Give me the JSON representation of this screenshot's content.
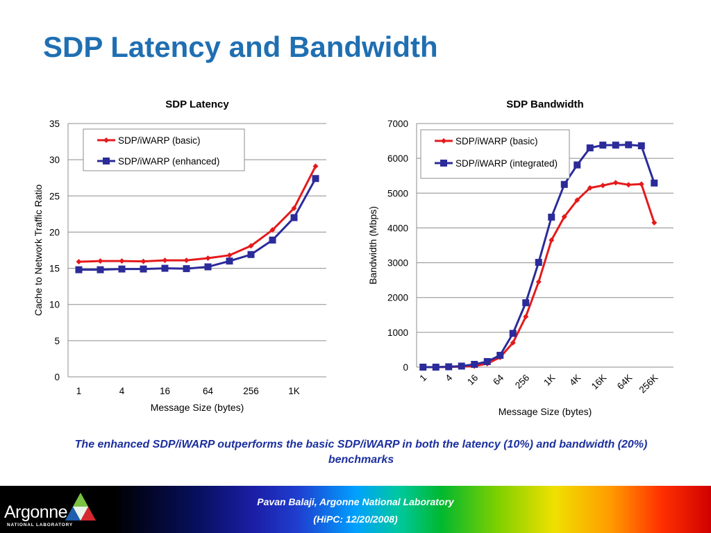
{
  "slide": {
    "title": "SDP Latency and Bandwidth",
    "caption": "The enhanced SDP/iWARP outperforms the basic SDP/iWARP in both the latency (10%) and bandwidth (20%) benchmarks"
  },
  "footer": {
    "line1": "Pavan Balaji, Argonne National Laboratory",
    "line2": "(HiPC: 12/20/2008)",
    "logo_text": "Argonne",
    "logo_subtext": "NATIONAL LABORATORY"
  },
  "chart_data": [
    {
      "id": "latency",
      "type": "line",
      "title": "SDP Latency",
      "xlabel": "Message Size (bytes)",
      "ylabel": "Cache to Network Traffic Ratio",
      "ylim": [
        0,
        35
      ],
      "yticks": [
        0,
        5,
        10,
        15,
        20,
        25,
        30,
        35
      ],
      "categories": [
        "1",
        "2",
        "4",
        "8",
        "16",
        "32",
        "64",
        "128",
        "256",
        "512",
        "1K",
        "2K"
      ],
      "tick_labels": [
        "1",
        "",
        "4",
        "",
        "16",
        "",
        "64",
        "",
        "256",
        "",
        "1K",
        ""
      ],
      "grid": true,
      "legend_position": "top-left",
      "series": [
        {
          "name": "SDP/iWARP (basic)",
          "color": "#e41a1c",
          "marker": "diamond",
          "values": [
            15.9,
            16.0,
            16.0,
            15.95,
            16.1,
            16.1,
            16.4,
            16.8,
            18.1,
            20.3,
            23.3,
            29.1
          ]
        },
        {
          "name": "SDP/iWARP (enhanced)",
          "color": "#2b2b9a",
          "marker": "square",
          "values": [
            14.8,
            14.8,
            14.9,
            14.9,
            15.0,
            14.95,
            15.2,
            16.0,
            16.9,
            18.9,
            22.0,
            27.4
          ]
        }
      ]
    },
    {
      "id": "bandwidth",
      "type": "line",
      "title": "SDP Bandwidth",
      "xlabel": "Message Size (bytes)",
      "ylabel": "Bandwidth (Mbps)",
      "ylim": [
        0,
        7000
      ],
      "yticks": [
        0,
        1000,
        2000,
        3000,
        4000,
        5000,
        6000,
        7000
      ],
      "categories": [
        "1",
        "2",
        "4",
        "8",
        "16",
        "32",
        "64",
        "128",
        "256",
        "512",
        "1K",
        "2K",
        "4K",
        "8K",
        "16K",
        "32K",
        "64K",
        "128K",
        "256K",
        "512K"
      ],
      "tick_labels": [
        "1",
        "",
        "4",
        "",
        "16",
        "",
        "64",
        "",
        "256",
        "",
        "1K",
        "",
        "4K",
        "",
        "16K",
        "",
        "64K",
        "",
        "256K",
        ""
      ],
      "grid": true,
      "legend_position": "top-left",
      "series": [
        {
          "name": "SDP/iWARP (basic)",
          "color": "#e41a1c",
          "marker": "diamond",
          "values": [
            0,
            0,
            5,
            15,
            30,
            100,
            280,
            700,
            1450,
            2450,
            3650,
            4320,
            4800,
            5150,
            5220,
            5300,
            5240,
            5260,
            4150,
            null
          ]
        },
        {
          "name": "SDP/iWARP (integrated)",
          "color": "#2b2b9a",
          "marker": "square",
          "values": [
            0,
            0,
            10,
            30,
            80,
            160,
            340,
            970,
            1850,
            3010,
            4310,
            5250,
            5810,
            6300,
            6380,
            6380,
            6390,
            6360,
            5290,
            null
          ]
        }
      ]
    }
  ]
}
